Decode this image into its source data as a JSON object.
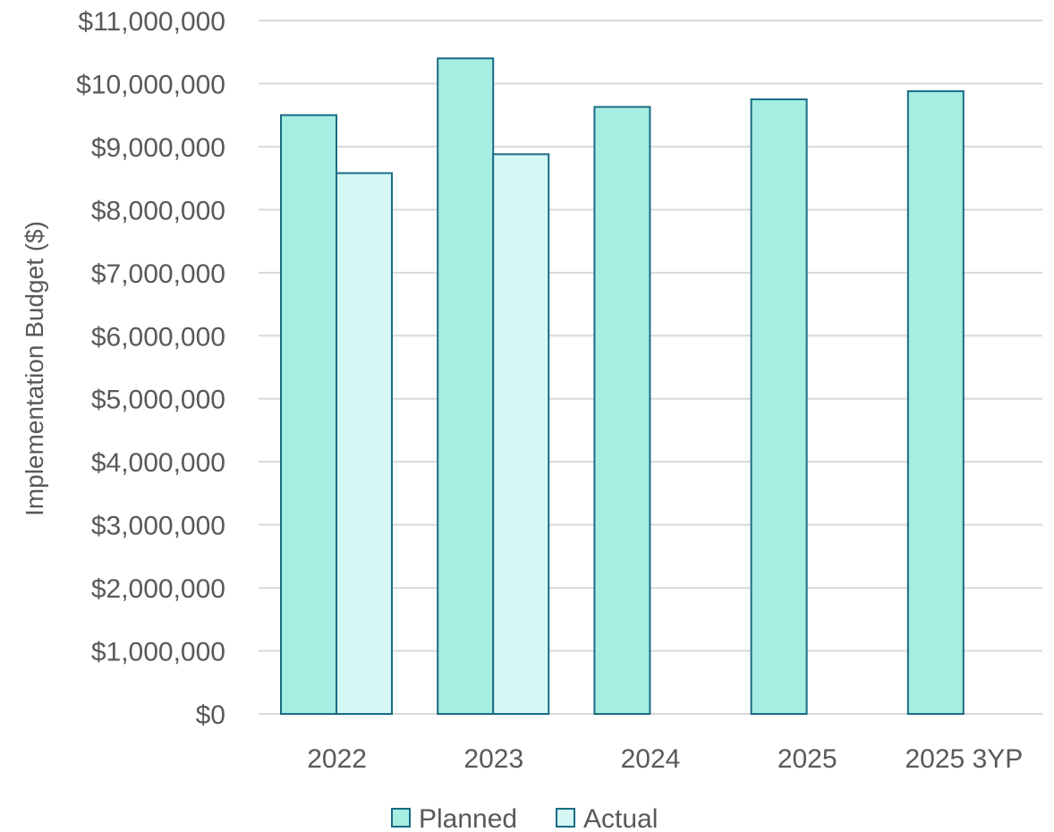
{
  "chart_data": {
    "type": "bar",
    "title": "",
    "xlabel": "",
    "ylabel": "Implementation Budget ($)",
    "categories": [
      "2022",
      "2023",
      "2024",
      "2025",
      "2025 3YP"
    ],
    "series": [
      {
        "name": "Planned",
        "values": [
          9500000,
          10400000,
          9630000,
          9750000,
          9880000
        ],
        "fill": "#a5eee1",
        "stroke": "#1a6b84"
      },
      {
        "name": "Actual",
        "values": [
          8580000,
          8880000,
          null,
          null,
          null
        ],
        "fill": "#d4f8f4",
        "stroke": "#1a6b84"
      }
    ],
    "ylim": [
      0,
      11000000
    ],
    "yticks": [
      0,
      1000000,
      2000000,
      3000000,
      4000000,
      5000000,
      6000000,
      7000000,
      8000000,
      9000000,
      10000000,
      11000000
    ],
    "ytick_labels": [
      "$0",
      "$1,000,000",
      "$2,000,000",
      "$3,000,000",
      "$4,000,000",
      "$5,000,000",
      "$6,000,000",
      "$7,000,000",
      "$8,000,000",
      "$9,000,000",
      "$10,000,000",
      "$11,000,000"
    ],
    "grid": true,
    "gridline_color": "#d9d9d9",
    "legend_position": "bottom"
  }
}
